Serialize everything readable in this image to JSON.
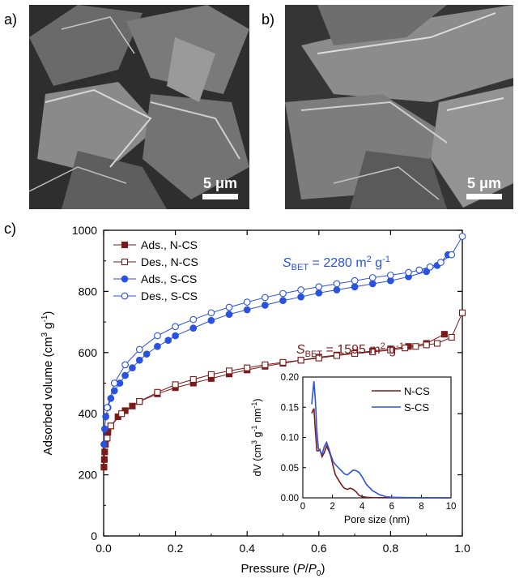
{
  "panels": {
    "a": {
      "label": "a)",
      "scale_text": "5 μm"
    },
    "b": {
      "label": "b)",
      "scale_text": "5 μm"
    },
    "c": {
      "label": "c)"
    }
  },
  "colors": {
    "ncs": "#7a1a1a",
    "scs": "#2a52e0"
  },
  "chart_data": [
    {
      "type": "scatter",
      "xlabel_parts": [
        "Pressure (",
        "P",
        "/",
        "P",
        "0",
        ")"
      ],
      "ylabel_parts": [
        "Adsorbed volume (cm",
        "3",
        " g",
        "-1",
        ")"
      ],
      "xlim": [
        0,
        1.0
      ],
      "ylim": [
        0,
        1000
      ],
      "xticks": [
        "0.0",
        "0.2",
        "0.4",
        "0.6",
        "0.8",
        "1.0"
      ],
      "yticks": [
        "0",
        "200",
        "400",
        "600",
        "800",
        "1000"
      ],
      "legend_position": "top-left",
      "legend": [
        "Ads., N-CS",
        "Des., N-CS",
        "Ads., S-CS",
        "Des., S-CS"
      ],
      "annotations": {
        "scs": {
          "s": "S",
          "sub": "BET",
          "rest": " = 2280 m",
          "sup2": "2",
          "g": " g",
          "sup": "-1"
        },
        "ncs": {
          "s": "S",
          "sub": "BET",
          "rest": " = 1595 m",
          "sup2": "2",
          "g": " g",
          "sup": "-1"
        }
      },
      "series": [
        {
          "name": "Ads., N-CS",
          "marker": "filled-square",
          "color": "#7a1a1a",
          "x": [
            0.001,
            0.002,
            0.003,
            0.005,
            0.008,
            0.012,
            0.02,
            0.04,
            0.06,
            0.08,
            0.1,
            0.15,
            0.2,
            0.25,
            0.3,
            0.35,
            0.4,
            0.45,
            0.5,
            0.55,
            0.6,
            0.65,
            0.7,
            0.75,
            0.8,
            0.85,
            0.9,
            0.95
          ],
          "y": [
            225,
            250,
            275,
            300,
            320,
            340,
            360,
            390,
            410,
            425,
            440,
            465,
            485,
            500,
            515,
            530,
            543,
            555,
            565,
            575,
            585,
            592,
            598,
            605,
            612,
            620,
            630,
            660
          ]
        },
        {
          "name": "Des., N-CS",
          "marker": "open-square",
          "color": "#7a1a1a",
          "x": [
            1.0,
            0.97,
            0.93,
            0.9,
            0.87,
            0.84,
            0.8,
            0.75,
            0.7,
            0.65,
            0.6,
            0.55,
            0.5,
            0.45,
            0.4,
            0.35,
            0.3,
            0.25,
            0.2,
            0.15,
            0.1,
            0.05,
            0.02,
            0.01
          ],
          "y": [
            730,
            650,
            630,
            625,
            620,
            615,
            608,
            602,
            597,
            590,
            582,
            575,
            568,
            560,
            550,
            540,
            528,
            512,
            495,
            470,
            440,
            400,
            360,
            320
          ]
        },
        {
          "name": "Ads., S-CS",
          "marker": "filled-circle",
          "color": "#2a52e0",
          "x": [
            0.001,
            0.003,
            0.006,
            0.012,
            0.02,
            0.03,
            0.045,
            0.06,
            0.08,
            0.1,
            0.12,
            0.15,
            0.18,
            0.2,
            0.25,
            0.3,
            0.35,
            0.4,
            0.45,
            0.5,
            0.55,
            0.6,
            0.65,
            0.7,
            0.75,
            0.8,
            0.85,
            0.9,
            0.93,
            0.96
          ],
          "y": [
            300,
            350,
            390,
            420,
            450,
            475,
            500,
            525,
            550,
            575,
            595,
            620,
            640,
            655,
            680,
            705,
            725,
            740,
            755,
            770,
            782,
            795,
            805,
            815,
            825,
            835,
            848,
            865,
            885,
            920
          ]
        },
        {
          "name": "Des., S-CS",
          "marker": "open-circle",
          "color": "#2a52e0",
          "x": [
            1.0,
            0.97,
            0.94,
            0.91,
            0.88,
            0.85,
            0.8,
            0.75,
            0.7,
            0.65,
            0.6,
            0.55,
            0.5,
            0.45,
            0.4,
            0.35,
            0.3,
            0.25,
            0.2,
            0.15,
            0.1,
            0.06,
            0.03,
            0.01
          ],
          "y": [
            980,
            920,
            895,
            880,
            870,
            862,
            853,
            845,
            835,
            825,
            815,
            805,
            793,
            780,
            765,
            748,
            730,
            708,
            685,
            655,
            610,
            560,
            500,
            420
          ]
        }
      ]
    },
    {
      "type": "line",
      "xlabel": "Pore size (nm)",
      "ylabel_parts": [
        "dV (cm",
        "3",
        " g",
        "-1",
        " nm",
        "-1",
        ")"
      ],
      "xlim": [
        0,
        10
      ],
      "ylim": [
        0,
        0.2
      ],
      "xticks": [
        "0",
        "2",
        "4",
        "6",
        "8",
        "10"
      ],
      "yticks": [
        "0.00",
        "0.05",
        "0.10",
        "0.15",
        "0.20"
      ],
      "legend_position": "top-right",
      "series": [
        {
          "name": "N-CS",
          "color": "#7a1a1a",
          "x": [
            0.6,
            0.75,
            0.85,
            0.95,
            1.05,
            1.15,
            1.3,
            1.45,
            1.6,
            1.75,
            1.9,
            2.05,
            2.2,
            2.4,
            2.6,
            2.8,
            3.0,
            3.2,
            3.4,
            3.6,
            3.8,
            4.0,
            4.3,
            4.7,
            5.2,
            6,
            7,
            8,
            9,
            10
          ],
          "y": [
            0.14,
            0.148,
            0.11,
            0.078,
            0.078,
            0.08,
            0.068,
            0.075,
            0.086,
            0.078,
            0.068,
            0.052,
            0.038,
            0.03,
            0.022,
            0.016,
            0.014,
            0.016,
            0.014,
            0.01,
            0.004,
            0.002,
            0.001,
            0.0005,
            0.0003,
            0.0002,
            0.0001,
            0.0001,
            0.0001,
            0.0001
          ]
        },
        {
          "name": "S-CS",
          "color": "#2a52e0",
          "x": [
            0.6,
            0.75,
            0.85,
            0.95,
            1.05,
            1.15,
            1.3,
            1.45,
            1.6,
            1.75,
            1.9,
            2.05,
            2.2,
            2.4,
            2.6,
            2.8,
            3.0,
            3.2,
            3.4,
            3.6,
            3.8,
            4.0,
            4.3,
            4.7,
            5.2,
            5.6,
            6,
            7,
            8,
            9,
            10
          ],
          "y": [
            0.155,
            0.193,
            0.16,
            0.11,
            0.082,
            0.078,
            0.072,
            0.085,
            0.092,
            0.082,
            0.07,
            0.06,
            0.055,
            0.05,
            0.045,
            0.04,
            0.038,
            0.042,
            0.046,
            0.045,
            0.042,
            0.035,
            0.022,
            0.012,
            0.005,
            0.002,
            0.001,
            0.0005,
            0.0003,
            0.0002,
            0.0001
          ]
        }
      ]
    }
  ]
}
